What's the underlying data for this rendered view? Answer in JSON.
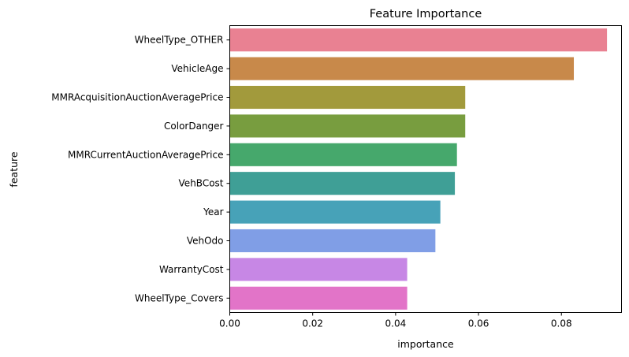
{
  "chart_data": {
    "type": "bar",
    "orientation": "horizontal",
    "title": "Feature Importance",
    "xlabel": "importance",
    "ylabel": "feature",
    "categories": [
      "WheelType_OTHER",
      "VehicleAge",
      "MMRAcquisitionAuctionAveragePrice",
      "ColorDanger",
      "MMRCurrentAuctionAveragePrice",
      "VehBCost",
      "Year",
      "VehOdo",
      "WarrantyCost",
      "WheelType_Covers"
    ],
    "values": [
      0.091,
      0.083,
      0.0568,
      0.0568,
      0.0548,
      0.0543,
      0.0508,
      0.0496,
      0.0428,
      0.0428
    ],
    "colors": [
      "#e98192",
      "#c8894a",
      "#a29a3c",
      "#789d3f",
      "#46a86c",
      "#3f9f96",
      "#47a2b8",
      "#809ee6",
      "#c787e5",
      "#e274c8"
    ],
    "xlim": [
      0,
      0.0945
    ],
    "xticks": [
      0,
      0.02,
      0.04,
      0.06,
      0.08
    ],
    "xtick_labels": [
      "0.00",
      "0.02",
      "0.04",
      "0.06",
      "0.08"
    ],
    "grid": false,
    "legend": "none"
  }
}
